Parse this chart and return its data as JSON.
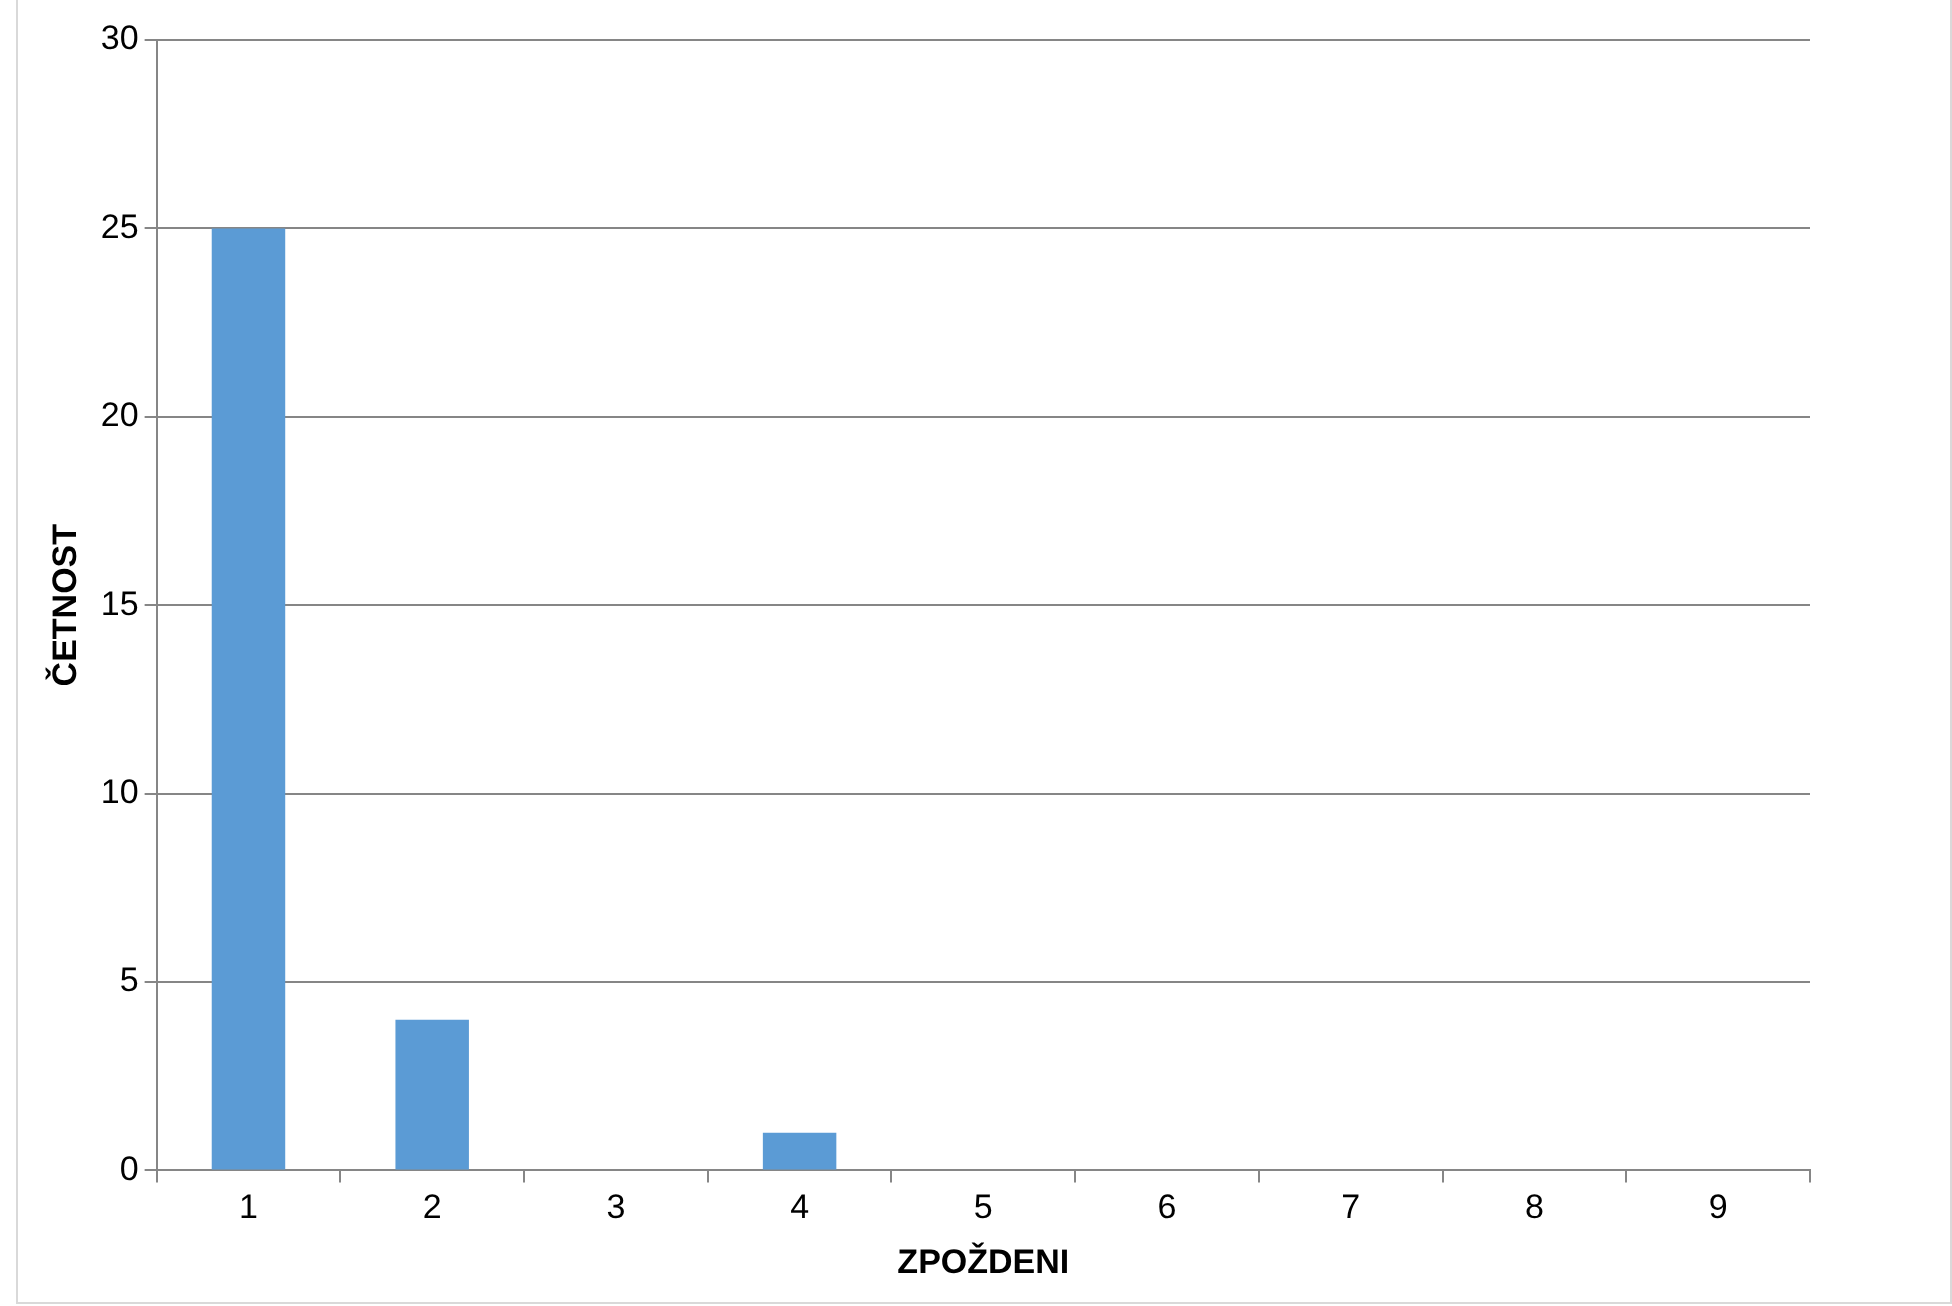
{
  "chart_data": {
    "type": "bar",
    "xlabel": "ZPOŽDENI",
    "ylabel": "ČETNOST",
    "categories": [
      "1",
      "2",
      "3",
      "4",
      "5",
      "6",
      "7",
      "8",
      "9"
    ],
    "values": [
      25,
      4,
      0,
      1,
      0,
      0,
      0,
      0,
      0
    ],
    "color": "#5b9bd5",
    "ylim": [
      0,
      30
    ],
    "yticks": [
      0,
      5,
      10,
      15,
      20,
      25,
      30
    ],
    "grid": "y",
    "legend": false
  }
}
